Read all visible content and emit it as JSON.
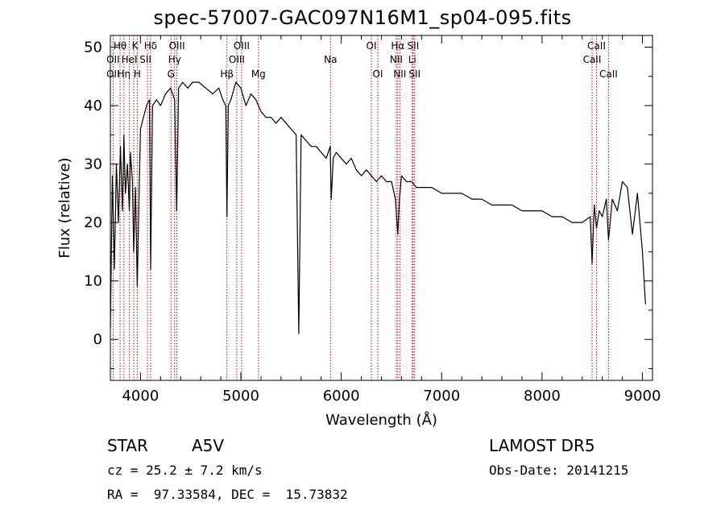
{
  "title": "spec-57007-GAC097N16M1_sp04-095.fits",
  "info": {
    "class_label": "STAR",
    "subclass": "A5V",
    "survey": "LAMOST DR5",
    "cz": "cz = 25.2 ± 7.2 km/s",
    "obs_date": "Obs-Date: 20141215",
    "coords": "RA =  97.33584, DEC =  15.73832"
  },
  "chart_data": {
    "type": "line",
    "title": "spec-57007-GAC097N16M1_sp04-095.fits",
    "xlabel": "Wavelength (Å)",
    "ylabel": "Flux (relative)",
    "xlim": [
      3700,
      9100
    ],
    "ylim": [
      -7,
      52
    ],
    "xticks": [
      4000,
      5000,
      6000,
      7000,
      8000,
      9000
    ],
    "yticks": [
      0,
      10,
      20,
      30,
      40,
      50
    ],
    "grid": false,
    "line_color": "#000000",
    "marker_color": "#cc0000",
    "spectrum": {
      "x": [
        3700,
        3720,
        3740,
        3760,
        3780,
        3800,
        3820,
        3835,
        3850,
        3870,
        3889,
        3900,
        3920,
        3933,
        3950,
        3968,
        3985,
        4000,
        4030,
        4060,
        4090,
        4101,
        4120,
        4160,
        4200,
        4250,
        4300,
        4340,
        4360,
        4380,
        4420,
        4470,
        4520,
        4580,
        4650,
        4720,
        4780,
        4820,
        4850,
        4861,
        4875,
        4900,
        4950,
        5000,
        5050,
        5100,
        5150,
        5200,
        5250,
        5300,
        5350,
        5400,
        5450,
        5500,
        5550,
        5577,
        5600,
        5650,
        5700,
        5750,
        5800,
        5850,
        5890,
        5900,
        5920,
        5950,
        6000,
        6050,
        6100,
        6150,
        6200,
        6250,
        6300,
        6350,
        6400,
        6450,
        6500,
        6540,
        6563,
        6580,
        6600,
        6650,
        6700,
        6750,
        6800,
        6900,
        7000,
        7100,
        7200,
        7300,
        7400,
        7500,
        7600,
        7700,
        7800,
        7900,
        8000,
        8100,
        8200,
        8300,
        8400,
        8480,
        8498,
        8520,
        8542,
        8570,
        8600,
        8640,
        8662,
        8700,
        8750,
        8800,
        8850,
        8900,
        8950,
        9000,
        9030
      ],
      "y": [
        2,
        28,
        12,
        30,
        20,
        33,
        22,
        35,
        25,
        30,
        22,
        32,
        27,
        15,
        26,
        9,
        24,
        36,
        38,
        40,
        41,
        12,
        40,
        41,
        40,
        42,
        43,
        41,
        22,
        43,
        44,
        43,
        44,
        44,
        43,
        42,
        43,
        41,
        40,
        21,
        40,
        41,
        44,
        43,
        40,
        42,
        41,
        39,
        38,
        38,
        37,
        38,
        37,
        36,
        35,
        1,
        35,
        34,
        33,
        33,
        32,
        31,
        33,
        24,
        31,
        32,
        31,
        30,
        31,
        29,
        28,
        29,
        28,
        27,
        28,
        27,
        27,
        24,
        18,
        24,
        28,
        27,
        27,
        26,
        26,
        26,
        25,
        25,
        25,
        24,
        24,
        23,
        23,
        23,
        22,
        22,
        22,
        21,
        21,
        20,
        20,
        21,
        13,
        23,
        19,
        22,
        21,
        24,
        17,
        24,
        22,
        27,
        26,
        18,
        25,
        15,
        6
      ]
    },
    "line_markers": [
      {
        "name": "Hθ",
        "wavelength": 3797
      },
      {
        "name": "OII",
        "wavelength": 3727
      },
      {
        "name": "Hη",
        "wavelength": 3835
      },
      {
        "name": "K",
        "wavelength": 3933
      },
      {
        "name": "HeI",
        "wavelength": 3889
      },
      {
        "name": "SII",
        "wavelength": 4070
      },
      {
        "name": "H",
        "wavelength": 3968
      },
      {
        "name": "Hδ",
        "wavelength": 4101
      },
      {
        "name": "OIII",
        "wavelength": 4363
      },
      {
        "name": "Hγ",
        "wavelength": 4340
      },
      {
        "name": "G",
        "wavelength": 4304
      },
      {
        "name": "OIII",
        "wavelength": 5007
      },
      {
        "name": "OIII",
        "wavelength": 4959
      },
      {
        "name": "Hβ",
        "wavelength": 4861
      },
      {
        "name": "Mg",
        "wavelength": 5175
      },
      {
        "name": "Na",
        "wavelength": 5893
      },
      {
        "name": "OI",
        "wavelength": 6300
      },
      {
        "name": "OI",
        "wavelength": 6364
      },
      {
        "name": "Hα",
        "wavelength": 6563
      },
      {
        "name": "NII",
        "wavelength": 6548
      },
      {
        "name": "NII",
        "wavelength": 6583
      },
      {
        "name": "SII",
        "wavelength": 6716
      },
      {
        "name": "Li",
        "wavelength": 6707
      },
      {
        "name": "SII",
        "wavelength": 6731
      },
      {
        "name": "CaII",
        "wavelength": 8542
      },
      {
        "name": "CaII",
        "wavelength": 8498
      },
      {
        "name": "CaII",
        "wavelength": 8662
      }
    ],
    "line_labels": [
      {
        "text": "Hθ",
        "x": 3797,
        "row": 1
      },
      {
        "text": "K",
        "x": 3945,
        "row": 1
      },
      {
        "text": "Hδ",
        "x": 4101,
        "row": 1
      },
      {
        "text": "OIII",
        "x": 4363,
        "row": 1
      },
      {
        "text": "OIII",
        "x": 5007,
        "row": 1
      },
      {
        "text": "OI",
        "x": 6300,
        "row": 1
      },
      {
        "text": "Hα",
        "x": 6563,
        "row": 1
      },
      {
        "text": "SII",
        "x": 6716,
        "row": 1
      },
      {
        "text": "CaII",
        "x": 8542,
        "row": 1
      },
      {
        "text": "OII",
        "x": 3727,
        "row": 2
      },
      {
        "text": "HeI",
        "x": 3889,
        "row": 2
      },
      {
        "text": "SII",
        "x": 4050,
        "row": 2
      },
      {
        "text": "Hγ",
        "x": 4340,
        "row": 2
      },
      {
        "text": "OIII",
        "x": 4959,
        "row": 2
      },
      {
        "text": "Na",
        "x": 5893,
        "row": 2
      },
      {
        "text": "NII",
        "x": 6548,
        "row": 2
      },
      {
        "text": "Li",
        "x": 6707,
        "row": 2
      },
      {
        "text": "CaII",
        "x": 8498,
        "row": 2
      },
      {
        "text": "OII",
        "x": 3727,
        "row": 3
      },
      {
        "text": "Hη",
        "x": 3835,
        "row": 3
      },
      {
        "text": "H",
        "x": 3968,
        "row": 3
      },
      {
        "text": "G",
        "x": 4304,
        "row": 3
      },
      {
        "text": "Hβ",
        "x": 4861,
        "row": 3
      },
      {
        "text": "Mg",
        "x": 5175,
        "row": 3
      },
      {
        "text": "OI",
        "x": 6364,
        "row": 3
      },
      {
        "text": "NII",
        "x": 6583,
        "row": 3
      },
      {
        "text": "SII",
        "x": 6731,
        "row": 3
      },
      {
        "text": "CaII",
        "x": 8662,
        "row": 3
      }
    ]
  }
}
